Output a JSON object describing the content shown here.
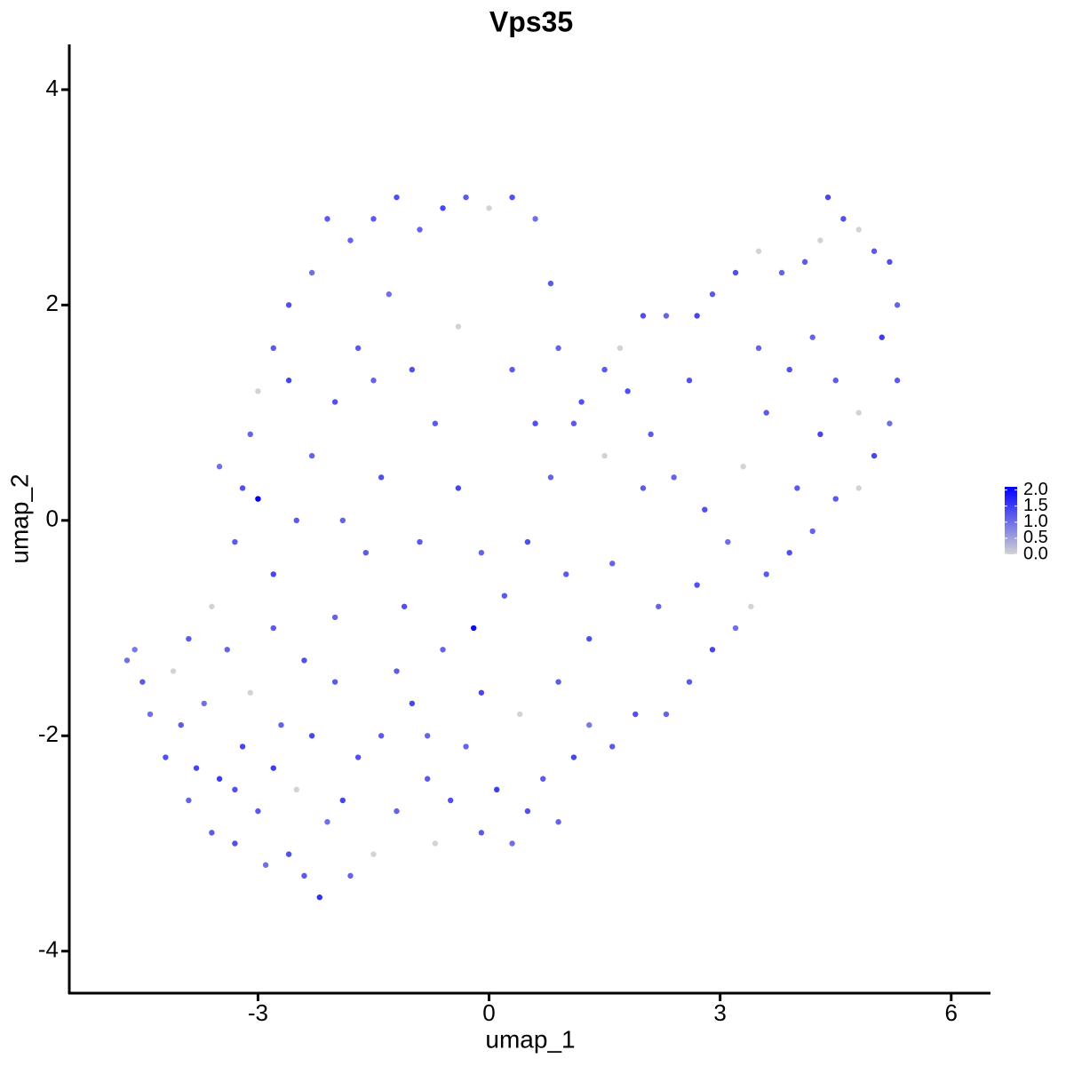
{
  "chart_data": {
    "type": "scatter",
    "title": "Vps35",
    "x_label": "umap_1",
    "y_label": "umap_2",
    "xlim": [
      -5.45,
      6.51
    ],
    "ylim": [
      -4.39,
      4.42
    ],
    "xticks": [
      -3,
      0,
      3,
      6
    ],
    "yticks": [
      -4,
      -2,
      0,
      2,
      4
    ],
    "color_scale": {
      "colors": [
        "#d3d3d3",
        "#0000ff"
      ],
      "lim": [
        0,
        2.1
      ],
      "ticks": [
        {
          "value": 0,
          "label": "0.0"
        },
        0.5,
        {
          "value": 1,
          "label": "1.0"
        },
        1.5,
        {
          "value": 2,
          "label": "2.0"
        }
      ]
    },
    "x": [
      -4.7,
      -4.6,
      -4.5,
      -4.4,
      -4.2,
      -4.1,
      -4.0,
      -3.9,
      -3.8,
      -3.7,
      -3.6,
      -3.5,
      -3.4,
      -3.3,
      -3.2,
      -3.1,
      -3.0,
      -2.9,
      -2.8,
      -2.7,
      -2.6,
      -2.5,
      -2.4,
      -2.3,
      -2.2,
      -2.1,
      -2.0,
      -1.9,
      -1.8,
      -1.7,
      -1.5,
      -1.4,
      -1.2,
      -1.0,
      -0.8,
      -0.7,
      -0.5,
      -0.3,
      -0.1,
      0.1,
      0.3,
      0.5,
      0.7,
      0.9,
      1.1,
      1.3,
      1.6,
      1.9,
      2.3,
      2.6,
      2.9,
      3.2,
      3.4,
      3.6,
      3.9,
      4.2,
      4.5,
      4.8,
      5.0,
      5.2,
      5.3,
      5.1,
      5.3,
      5.2,
      5.0,
      4.8,
      4.6,
      4.4,
      4.3,
      4.1,
      3.8,
      3.5,
      3.2,
      2.9,
      2.7,
      2.3,
      2.0,
      1.7,
      1.5,
      1.2,
      0.9,
      0.8,
      0.6,
      0.3,
      0.0,
      -0.3,
      -0.6,
      -0.9,
      -1.2,
      -1.5,
      -1.8,
      -2.1,
      -2.3,
      -2.6,
      -2.8,
      -3.0,
      -3.1,
      -3.2,
      -3.3,
      -3.0,
      -2.8,
      -2.5,
      -2.3,
      -2.0,
      -1.7,
      -1.3,
      -1.0,
      -0.7,
      -0.4,
      -0.1,
      -0.2,
      0.2,
      0.5,
      0.8,
      1.1,
      1.5,
      1.8,
      2.1,
      2.4,
      2.8,
      3.1,
      3.3,
      3.6,
      3.9,
      4.2,
      4.5,
      4.8,
      4.3,
      4.0,
      3.5,
      2.6,
      2.0,
      1.6,
      1.3,
      0.9,
      0.4,
      -0.1,
      -0.6,
      -1.1,
      -1.6,
      -2.0,
      -2.4,
      -2.8,
      -3.6,
      -3.9,
      -1.4,
      -0.9,
      -1.9,
      -0.4,
      0.3,
      -2.6,
      -1.5,
      0.6,
      1.0,
      2.2,
      2.7,
      -3.5,
      -1.2,
      -0.8,
      -3.3
    ],
    "y": [
      -1.3,
      -1.2,
      -1.5,
      -1.8,
      -2.2,
      -1.4,
      -1.9,
      -2.6,
      -2.3,
      -1.7,
      -2.9,
      -2.4,
      -1.2,
      -3.0,
      -2.1,
      -1.6,
      -2.7,
      -3.2,
      -2.3,
      -1.9,
      -3.1,
      -2.5,
      -3.3,
      -2.0,
      -3.5,
      -2.8,
      -1.5,
      -2.6,
      -3.3,
      -2.2,
      -3.1,
      -2.0,
      -2.7,
      -1.7,
      -2.4,
      -3.0,
      -2.6,
      -2.1,
      -2.9,
      -2.5,
      -3.0,
      -2.7,
      -2.4,
      -2.8,
      -2.2,
      -1.9,
      -2.1,
      -1.8,
      -1.8,
      -1.5,
      -1.2,
      -1.0,
      -0.8,
      -0.5,
      -0.3,
      -0.1,
      0.2,
      0.3,
      0.6,
      0.9,
      1.3,
      1.7,
      2.0,
      2.4,
      2.5,
      2.7,
      2.8,
      3.0,
      2.6,
      2.4,
      2.3,
      2.5,
      2.3,
      2.1,
      1.9,
      1.9,
      1.9,
      1.6,
      1.4,
      1.1,
      1.6,
      2.2,
      2.8,
      3.0,
      2.9,
      3.0,
      2.9,
      2.7,
      3.0,
      2.8,
      2.6,
      2.8,
      2.3,
      2.0,
      1.6,
      1.2,
      0.8,
      0.3,
      -0.2,
      0.2,
      -0.5,
      0.0,
      0.6,
      1.1,
      1.6,
      2.1,
      1.4,
      0.9,
      0.3,
      -0.3,
      -1.0,
      -0.7,
      -0.2,
      0.4,
      0.9,
      0.6,
      1.2,
      0.8,
      0.4,
      0.1,
      -0.2,
      0.5,
      1.0,
      1.4,
      1.7,
      1.3,
      1.0,
      0.8,
      0.3,
      1.6,
      1.3,
      0.3,
      -0.4,
      -1.1,
      -1.5,
      -1.8,
      -1.6,
      -1.2,
      -0.8,
      -0.3,
      -0.9,
      -1.3,
      -1.0,
      -0.8,
      -1.1,
      0.4,
      -0.2,
      0.0,
      1.8,
      1.4,
      1.3,
      1.3,
      0.9,
      -0.5,
      -0.8,
      -0.6,
      0.5,
      -1.4,
      -2.0,
      -2.5
    ],
    "values": [
      1.0,
      0.9,
      1.2,
      1.0,
      1.3,
      0,
      1.2,
      1.1,
      1.4,
      1.0,
      1.2,
      1.5,
      1.1,
      1.3,
      1.4,
      0,
      1.2,
      1.0,
      1.5,
      1.1,
      1.3,
      0,
      1.2,
      1.4,
      1.6,
      1.0,
      1.2,
      1.4,
      1.1,
      1.3,
      0,
      1.2,
      1.1,
      1.4,
      1.2,
      0,
      1.3,
      1.1,
      1.2,
      1.5,
      1.0,
      1.3,
      1.2,
      1.1,
      1.4,
      0.9,
      1.2,
      1.3,
      1.1,
      1.2,
      1.4,
      1.0,
      0,
      1.2,
      1.3,
      1.1,
      1.2,
      0,
      1.4,
      1.0,
      1.2,
      1.5,
      1.1,
      1.3,
      1.2,
      0,
      1.3,
      1.4,
      0,
      1.2,
      1.1,
      0,
      1.3,
      1.2,
      1.4,
      1.1,
      1.3,
      0,
      1.2,
      1.3,
      1.1,
      1.2,
      1.0,
      1.3,
      0,
      1.2,
      1.4,
      1.1,
      1.3,
      1.2,
      1.1,
      1.2,
      1.0,
      1.3,
      1.2,
      0,
      1.1,
      1.3,
      1.2,
      2.1,
      1.4,
      1.2,
      1.1,
      1.3,
      1.2,
      1.0,
      1.3,
      1.2,
      1.4,
      1.1,
      2.0,
      1.2,
      1.3,
      1.1,
      1.2,
      0,
      1.3,
      1.2,
      1.1,
      1.3,
      1.0,
      0,
      1.2,
      1.3,
      1.1,
      1.2,
      0,
      1.4,
      1.2,
      1.1,
      1.3,
      1.2,
      1.1,
      1.3,
      1.2,
      0,
      1.4,
      1.1,
      1.3,
      1.2,
      1.1,
      1.3,
      1.2,
      0,
      1.2,
      1.3,
      1.2,
      1.1,
      0,
      1.2,
      1.4,
      1.1,
      1.3,
      1.2,
      1.1,
      1.3,
      1.0,
      1.2,
      1.1,
      1.3
    ]
  }
}
